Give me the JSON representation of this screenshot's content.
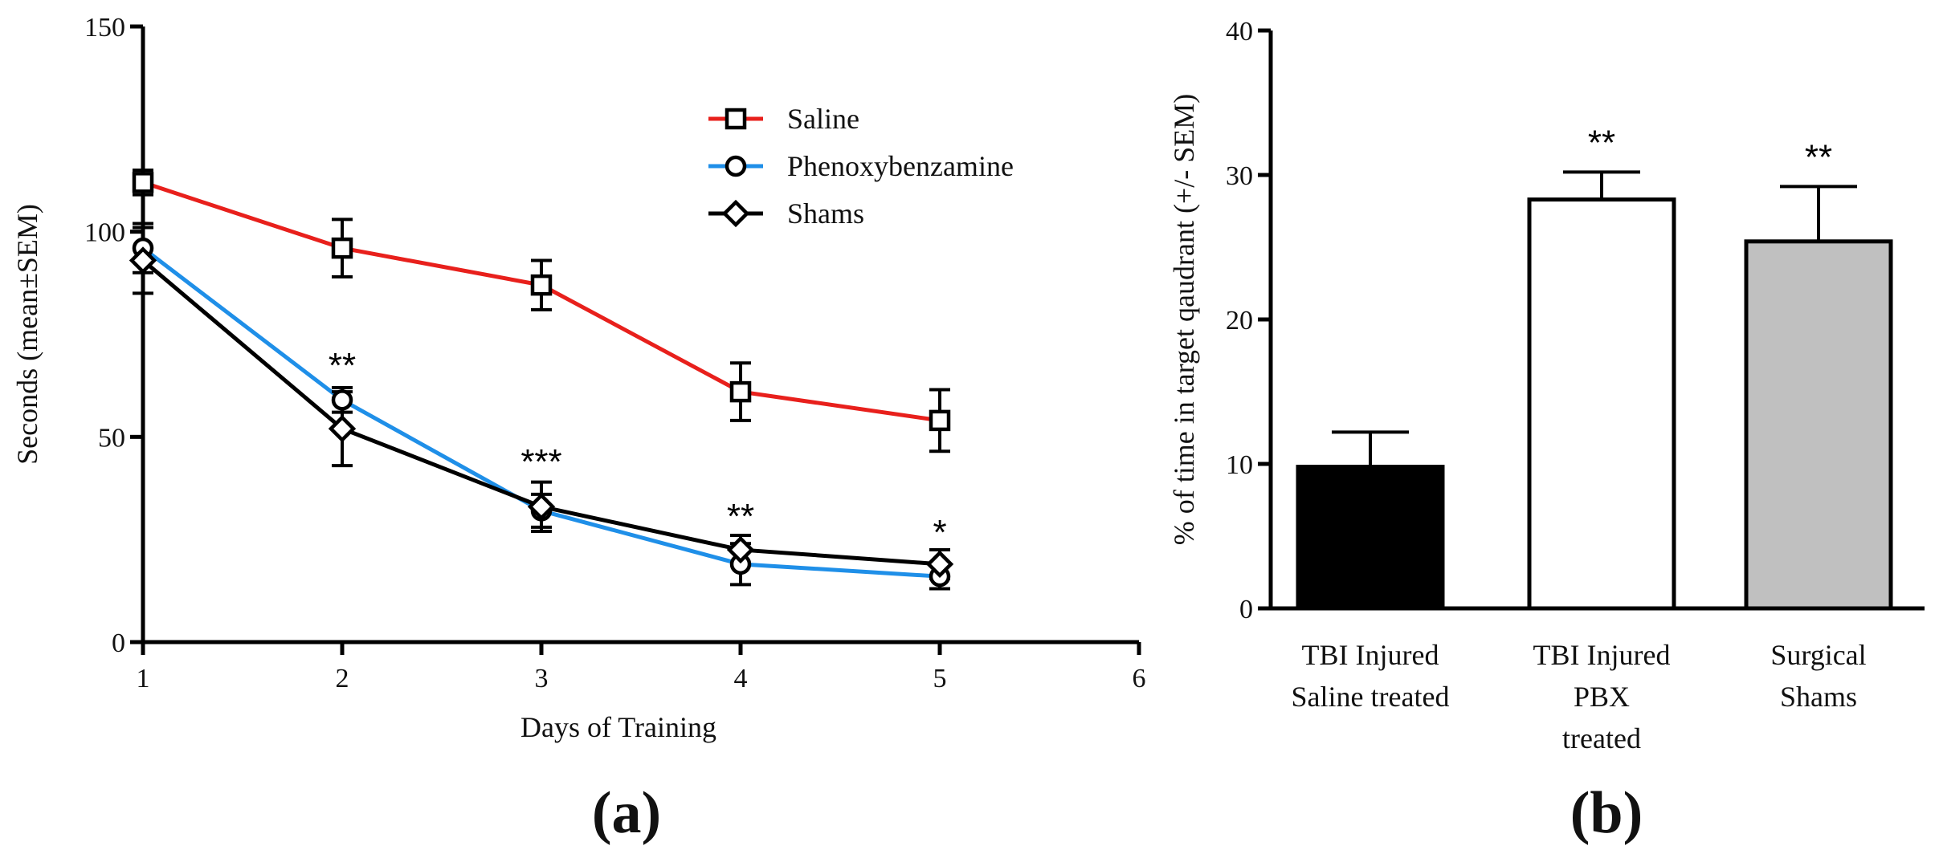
{
  "chart_data": [
    {
      "type": "line",
      "panel_label": "(a)",
      "xlabel": "Days of Training",
      "ylabel": "Seconds (mean±SEM)",
      "xlim": [
        1,
        6
      ],
      "ylim": [
        0,
        150
      ],
      "x_ticks": [
        1,
        2,
        3,
        4,
        5,
        6
      ],
      "y_ticks": [
        0,
        50,
        100,
        150
      ],
      "grid": false,
      "legend_position": "top-right",
      "x": [
        1,
        2,
        3,
        4,
        5
      ],
      "series": [
        {
          "name": "Saline",
          "color": "#e8201c",
          "marker": "square",
          "values": [
            112,
            96,
            87,
            61,
            54
          ],
          "errors": [
            3,
            7,
            6,
            7,
            7.5
          ]
        },
        {
          "name": "Phenoxybenzamine",
          "color": "#1f8fe8",
          "marker": "circle",
          "values": [
            96,
            59,
            32,
            19,
            16
          ],
          "errors": [
            6,
            3,
            4,
            5,
            3
          ]
        },
        {
          "name": "Shams",
          "color": "#000000",
          "marker": "diamond",
          "values": [
            93,
            52,
            33,
            22.5,
            19
          ],
          "errors": [
            8,
            9,
            6,
            3.5,
            3.5
          ]
        }
      ],
      "annotations": [
        {
          "x": 2,
          "text": "**"
        },
        {
          "x": 3,
          "text": "***"
        },
        {
          "x": 4,
          "text": "**"
        },
        {
          "x": 5,
          "text": "*"
        }
      ]
    },
    {
      "type": "bar",
      "panel_label": "(b)",
      "ylabel": "% of time in target qaudrant (+/- SEM)",
      "ylim": [
        0,
        40
      ],
      "y_ticks": [
        0,
        10,
        20,
        30,
        40
      ],
      "categories": [
        [
          "TBI Injured",
          "Saline treated"
        ],
        [
          "TBI Injured",
          "PBX",
          "treated"
        ],
        [
          "Surgical",
          "Shams"
        ]
      ],
      "values": [
        9.8,
        28.3,
        25.4
      ],
      "errors": [
        2.4,
        1.9,
        3.8
      ],
      "colors": [
        "#000000",
        "#ffffff",
        "#c0c0c0"
      ],
      "annotations": [
        "",
        "**",
        "**"
      ]
    }
  ]
}
